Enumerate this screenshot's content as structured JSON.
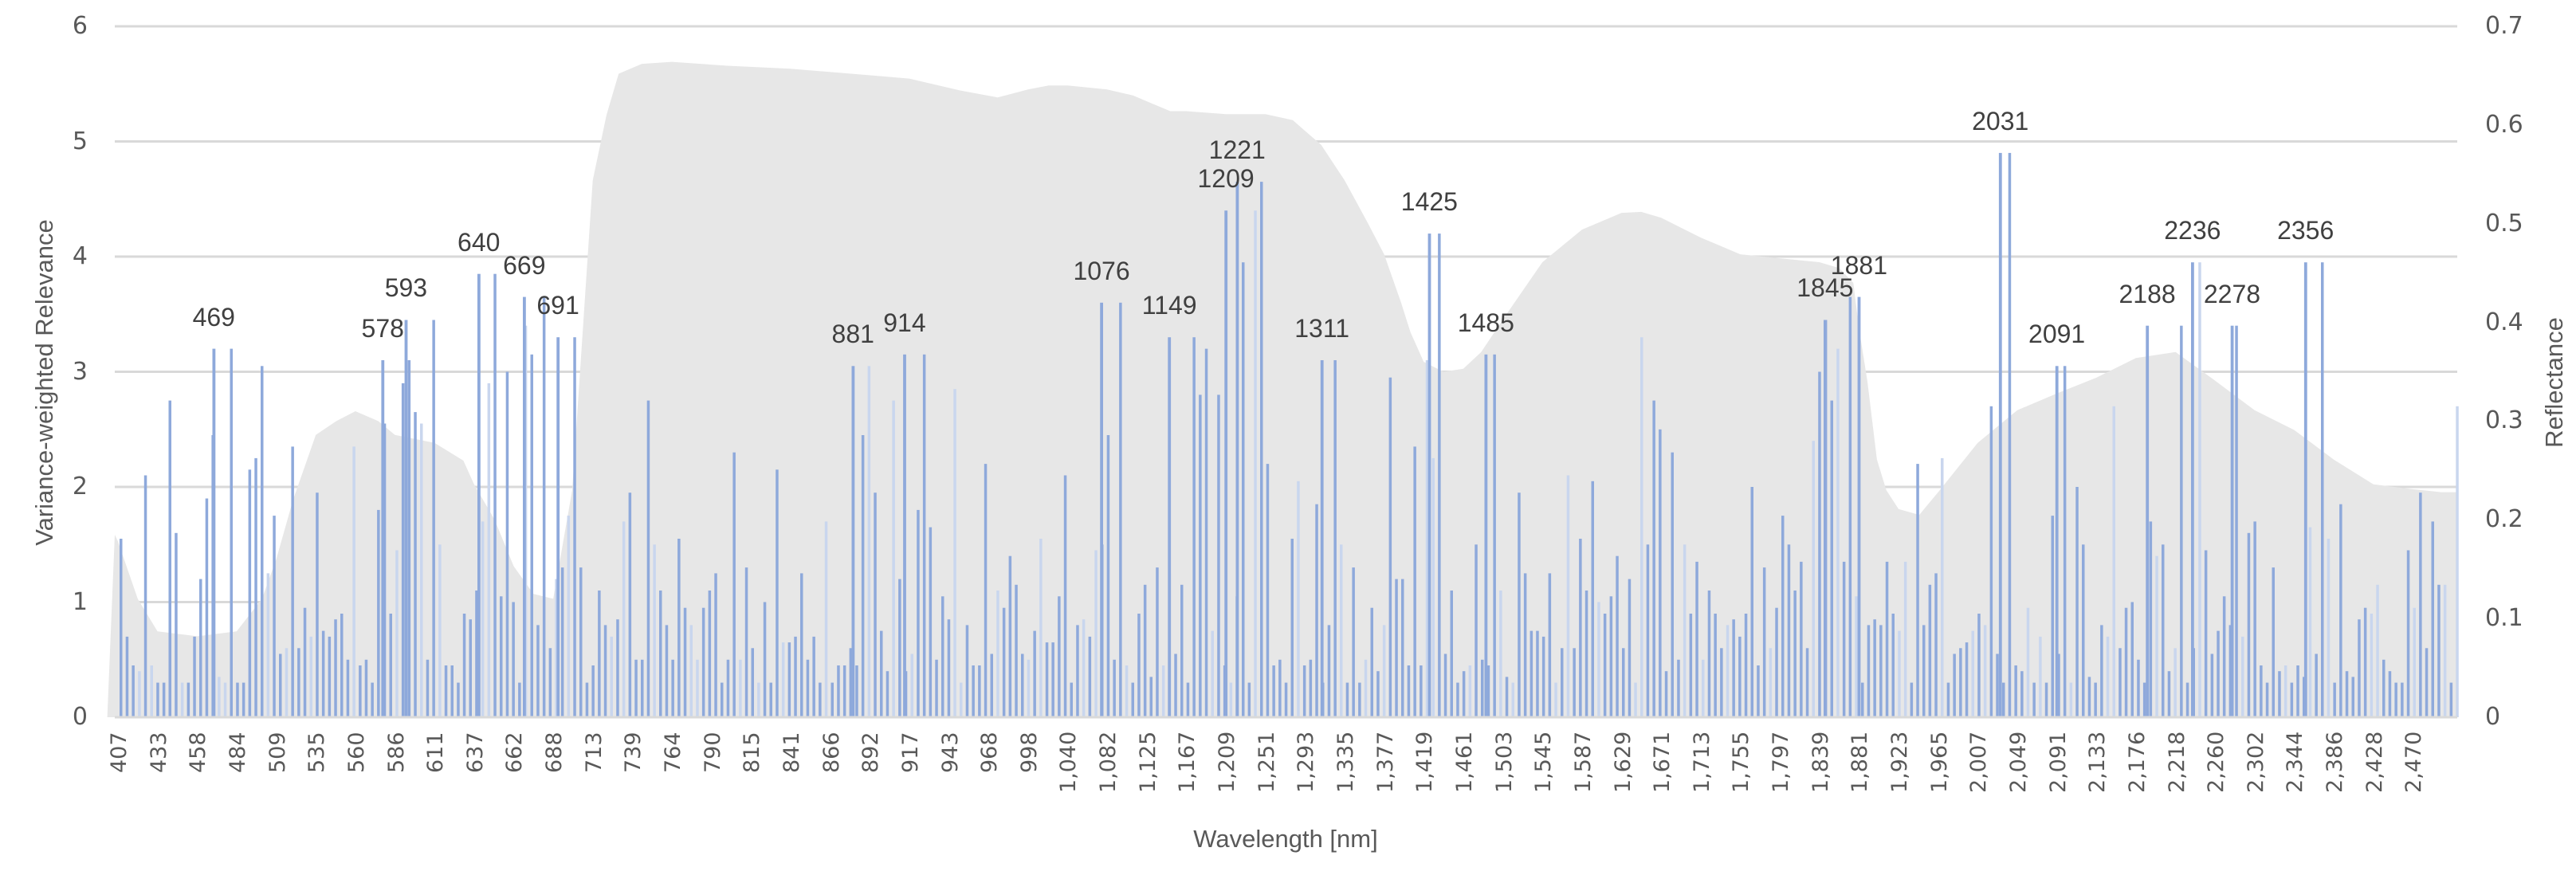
{
  "chart_data": {
    "type": "bar",
    "title": "",
    "xlabel": "Wavelength [nm]",
    "ylabel": "Variance-weighted Relevance",
    "y2label": "Reflectance",
    "ylim": [
      0,
      6
    ],
    "y2lim": [
      0,
      0.7
    ],
    "yticks": [
      "0",
      "1",
      "2",
      "3",
      "4",
      "5",
      "6"
    ],
    "y2ticks": [
      "0",
      "0.1",
      "0.2",
      "0.3",
      "0.4",
      "0.5",
      "0.6",
      "0.7"
    ],
    "grid": true,
    "legend": "none",
    "x_tick_labels": [
      "407",
      "433",
      "458",
      "484",
      "509",
      "535",
      "560",
      "586",
      "611",
      "637",
      "662",
      "688",
      "713",
      "739",
      "764",
      "790",
      "815",
      "841",
      "866",
      "892",
      "917",
      "943",
      "968",
      "998",
      "1,040",
      "1,082",
      "1,125",
      "1,167",
      "1,209",
      "1,251",
      "1,293",
      "1,335",
      "1,377",
      "1,419",
      "1,461",
      "1,503",
      "1,545",
      "1,587",
      "1,629",
      "1,671",
      "1,713",
      "1,755",
      "1,797",
      "1,839",
      "1,881",
      "1,923",
      "1,965",
      "2,007",
      "2,049",
      "2,091",
      "2,133",
      "2,176",
      "2,218",
      "2,260",
      "2,302",
      "2,344",
      "2,386",
      "2,428",
      "2,470"
    ],
    "colors": {
      "bars": "#8EA9DB",
      "bars_light": "#C9D6EE",
      "reflectance_fill": "#E7E7E7",
      "grid": "#D9D9D9",
      "text": "#595959"
    },
    "series": [
      {
        "name": "Variance-weighted Relevance",
        "type": "bar",
        "axis": "left",
        "annotated_peaks": [
          {
            "wavelength": 469,
            "value": 3.2,
            "label": "469"
          },
          {
            "wavelength": 578,
            "value": 3.1,
            "label": "578"
          },
          {
            "wavelength": 593,
            "value": 3.45,
            "label": "593"
          },
          {
            "wavelength": 640,
            "value": 3.85,
            "label": "640"
          },
          {
            "wavelength": 669,
            "value": 3.65,
            "label": "669"
          },
          {
            "wavelength": 691,
            "value": 3.3,
            "label": "691"
          },
          {
            "wavelength": 881,
            "value": 3.05,
            "label": "881"
          },
          {
            "wavelength": 914,
            "value": 3.15,
            "label": "914"
          },
          {
            "wavelength": 1076,
            "value": 3.6,
            "label": "1076"
          },
          {
            "wavelength": 1149,
            "value": 3.3,
            "label": "1149"
          },
          {
            "wavelength": 1209,
            "value": 4.4,
            "label": "1209"
          },
          {
            "wavelength": 1221,
            "value": 4.65,
            "label": "1221"
          },
          {
            "wavelength": 1311,
            "value": 3.1,
            "label": "1311"
          },
          {
            "wavelength": 1425,
            "value": 4.2,
            "label": "1425"
          },
          {
            "wavelength": 1485,
            "value": 3.15,
            "label": "1485"
          },
          {
            "wavelength": 1845,
            "value": 3.45,
            "label": "1845"
          },
          {
            "wavelength": 1881,
            "value": 3.65,
            "label": "1881"
          },
          {
            "wavelength": 2031,
            "value": 4.9,
            "label": "2031"
          },
          {
            "wavelength": 2091,
            "value": 3.05,
            "label": "2091"
          },
          {
            "wavelength": 2188,
            "value": 3.4,
            "label": "2188"
          },
          {
            "wavelength": 2236,
            "value": 3.95,
            "label": "2236"
          },
          {
            "wavelength": 2278,
            "value": 3.4,
            "label": "2278"
          },
          {
            "wavelength": 2356,
            "value": 3.95,
            "label": "2356"
          }
        ],
        "background_bars": [
          1.55,
          0.7,
          0.45,
          0.4,
          2.1,
          0.45,
          0.3,
          0.3,
          2.75,
          1.6,
          0.3,
          0.3,
          0.7,
          1.2,
          1.9,
          2.45,
          0.35,
          0.3,
          3.2,
          0.3,
          0.3,
          2.15,
          2.25,
          3.05,
          1.25,
          1.75,
          0.55,
          0.6,
          2.35,
          0.6,
          0.95,
          0.7,
          1.95,
          0.75,
          0.7,
          0.85,
          0.9,
          0.5,
          2.35,
          0.45,
          0.5,
          0.3,
          1.8,
          2.55,
          0.9,
          1.45,
          2.9,
          3.1,
          2.65,
          2.55,
          0.5,
          3.45,
          1.5,
          0.45,
          0.45,
          0.3,
          0.9,
          0.85,
          1.1,
          1.7,
          2.9,
          3.85,
          1.05,
          3.0,
          1.0,
          0.3,
          3.4,
          3.15,
          0.8,
          3.65,
          0.6,
          1.2,
          1.3,
          1.75,
          3.3,
          1.3,
          0.3,
          0.45,
          1.1,
          0.8,
          0.7,
          0.85,
          1.7,
          1.95,
          0.5,
          0.5,
          2.75,
          1.5,
          1.1,
          0.8,
          0.5,
          1.55,
          0.95,
          0.8,
          0.5,
          0.95,
          1.1,
          1.25,
          0.3,
          0.5,
          2.3,
          0.5,
          1.3,
          0.6,
          0.3,
          1.0,
          0.3,
          2.15,
          0.65,
          0.65,
          0.7,
          1.25,
          0.5,
          0.7,
          0.3,
          1.7,
          0.3,
          0.45,
          0.45,
          0.6,
          0.45,
          2.45,
          3.05,
          1.95,
          0.75,
          0.4,
          2.75,
          1.2,
          0.4,
          0.55,
          1.8,
          3.15,
          1.65,
          0.5,
          1.05,
          0.85,
          2.85,
          0.3,
          0.8,
          0.45,
          0.45,
          2.2,
          0.55,
          1.1,
          0.95,
          1.4,
          1.15,
          0.55,
          0.5,
          0.75,
          1.55,
          0.65,
          0.65,
          1.05,
          2.1,
          0.3,
          0.8,
          0.85,
          0.7,
          1.45,
          1.5,
          2.45,
          0.5,
          3.6,
          0.45,
          0.3,
          0.9,
          1.15,
          0.35,
          1.3,
          0.45,
          1.25,
          0.55,
          1.15,
          0.3,
          3.3,
          2.8,
          3.2,
          0.75,
          2.8,
          0.45,
          0.3,
          1.05,
          3.95,
          0.3,
          4.4,
          4.65,
          2.2,
          0.45,
          0.5,
          0.3,
          1.55,
          2.05,
          0.45,
          0.5,
          1.85,
          0.3,
          0.8,
          3.1,
          1.5,
          0.3,
          1.3,
          0.3,
          0.5,
          0.95,
          0.4,
          0.8,
          2.95,
          1.2,
          1.2,
          0.45,
          2.35,
          0.45,
          3.1,
          2.25,
          4.2,
          0.55,
          1.1,
          0.3,
          0.4,
          0.45,
          1.5,
          0.5,
          0.45,
          3.15,
          1.1,
          0.35,
          0.3,
          1.95,
          1.25,
          0.75,
          0.75,
          0.7,
          1.25,
          0.3,
          0.6,
          2.1,
          0.6,
          1.55,
          1.1,
          2.05,
          1.0,
          0.9,
          1.05,
          1.4,
          0.6,
          1.2,
          0.3,
          3.3,
          1.5,
          2.75,
          2.5,
          0.4,
          2.3,
          0.5,
          1.5,
          0.9,
          1.35,
          0.5,
          1.1,
          0.9,
          0.6,
          0.8,
          0.85,
          0.7,
          0.9,
          2.0,
          0.45,
          1.3,
          0.6,
          0.95,
          1.75,
          1.5,
          1.1,
          1.35,
          0.6,
          2.4,
          3.0,
          3.45,
          2.75,
          3.2,
          1.35,
          3.65,
          1.05,
          0.3,
          0.8,
          0.85,
          0.8,
          1.35,
          0.9,
          0.75,
          1.35,
          0.3,
          2.2,
          0.8,
          1.15,
          1.25,
          2.25,
          0.3,
          0.55,
          0.6,
          0.65,
          0.75,
          0.9,
          0.8,
          2.7,
          0.55,
          0.3,
          4.9,
          0.45,
          0.4,
          0.95,
          0.3,
          0.7,
          0.3,
          1.75,
          0.55,
          3.05,
          0.3,
          2.0,
          1.5,
          0.35,
          0.3,
          0.8,
          0.7,
          2.7,
          0.6,
          0.95,
          1.0,
          0.5,
          0.3,
          1.7,
          1.4,
          1.5,
          0.4,
          0.6,
          3.4,
          0.3,
          0.6,
          3.95,
          1.45,
          0.55,
          0.75,
          1.05,
          0.8,
          3.4,
          0.7,
          1.6,
          1.7,
          0.45,
          0.3,
          1.3,
          0.4,
          0.45,
          0.3,
          0.45,
          0.35,
          1.65,
          0.55,
          3.95,
          1.55,
          0.3,
          1.85,
          0.4,
          0.35,
          0.85,
          0.95,
          0.9,
          1.15,
          0.5,
          0.4,
          0.3,
          0.3,
          1.45,
          0.95,
          1.95,
          0.6,
          1.7,
          1.15,
          1.15,
          0.3,
          2.7
        ]
      },
      {
        "name": "Reflectance",
        "type": "area",
        "axis": "right",
        "x": [
          400,
          407,
          420,
          433,
          458,
          484,
          500,
          509,
          520,
          535,
          548,
          560,
          575,
          586,
          611,
          630,
          637,
          650,
          662,
          675,
          688,
          700,
          713,
          722,
          730,
          745,
          764,
          800,
          841,
          880,
          917,
          950,
          975,
          998,
          1020,
          1040,
          1082,
          1110,
          1125,
          1150,
          1167,
          1209,
          1251,
          1280,
          1293,
          1310,
          1335,
          1360,
          1377,
          1395,
          1405,
          1419,
          1440,
          1461,
          1480,
          1503,
          1545,
          1587,
          1629,
          1650,
          1671,
          1713,
          1755,
          1797,
          1839,
          1860,
          1875,
          1881,
          1890,
          1900,
          1910,
          1923,
          1945,
          1965,
          2007,
          2049,
          2091,
          2133,
          2176,
          2218,
          2260,
          2302,
          2344,
          2386,
          2428,
          2470,
          2500
        ],
        "values": [
          0.185,
          0.178,
          0.12,
          0.087,
          0.082,
          0.087,
          0.12,
          0.16,
          0.22,
          0.286,
          0.3,
          0.31,
          0.3,
          0.286,
          0.278,
          0.26,
          0.236,
          0.2,
          0.153,
          0.125,
          0.12,
          0.23,
          0.544,
          0.61,
          0.652,
          0.662,
          0.664,
          0.66,
          0.657,
          0.652,
          0.647,
          0.635,
          0.628,
          0.636,
          0.64,
          0.64,
          0.636,
          0.63,
          0.624,
          0.614,
          0.614,
          0.611,
          0.611,
          0.605,
          0.594,
          0.58,
          0.544,
          0.5,
          0.469,
          0.42,
          0.39,
          0.36,
          0.35,
          0.353,
          0.37,
          0.403,
          0.461,
          0.494,
          0.511,
          0.512,
          0.506,
          0.486,
          0.469,
          0.465,
          0.461,
          0.455,
          0.44,
          0.394,
          0.34,
          0.261,
          0.23,
          0.211,
          0.205,
          0.228,
          0.278,
          0.311,
          0.328,
          0.344,
          0.364,
          0.37,
          0.341,
          0.311,
          0.291,
          0.261,
          0.236,
          0.231,
          0.228
        ]
      }
    ]
  }
}
